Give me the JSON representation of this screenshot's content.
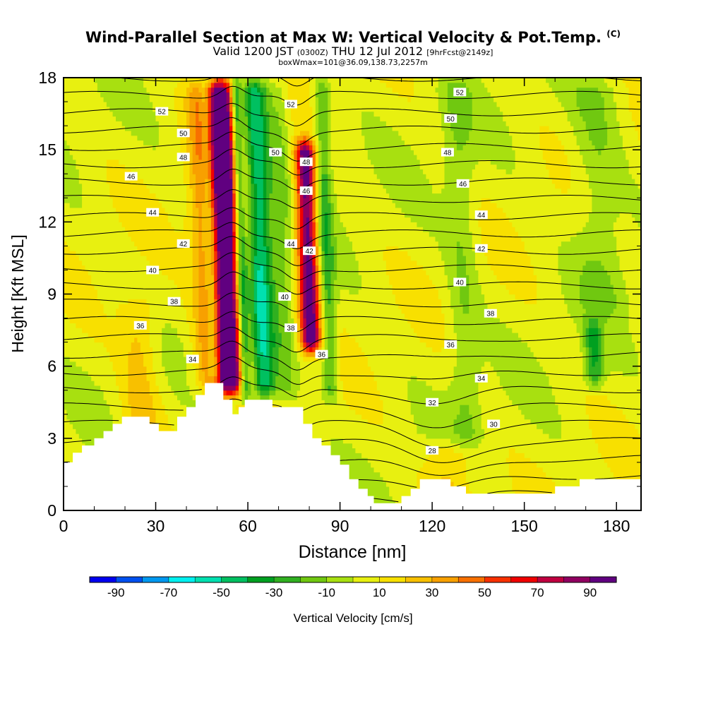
{
  "chart_data": {
    "type": "heatmap",
    "title": "Wind-Parallel Section at Max W: Vertical Velocity & Pot.Temp.",
    "title_mark": "(C)",
    "subtitle": {
      "valid": "Valid 1200 JST",
      "utc": "(0300Z)",
      "date": "THU 12 Jul 2012",
      "forecast": "[9hrFcst@2149z]"
    },
    "subtitle2": "boxWmax=101@36.09,138.73,2257m",
    "xlabel": "Distance [nm]",
    "ylabel": "Height [Kft MSL]",
    "xlim": [
      0,
      188
    ],
    "ylim": [
      0,
      18
    ],
    "x_ticks": [
      "0",
      "30",
      "60",
      "90",
      "120",
      "150",
      "180"
    ],
    "x_tick_values": [
      0,
      30,
      60,
      90,
      120,
      150,
      180
    ],
    "y_ticks": [
      "0",
      "3",
      "6",
      "9",
      "12",
      "15",
      "18"
    ],
    "y_tick_values": [
      0,
      3,
      6,
      9,
      12,
      15,
      18
    ],
    "colorbar": {
      "label": "Vertical Velocity [cm/s]",
      "tick_labels": [
        "-90",
        "-70",
        "-50",
        "-30",
        "-10",
        "10",
        "30",
        "50",
        "70",
        "90"
      ],
      "tick_values": [
        -90,
        -70,
        -50,
        -30,
        -10,
        10,
        30,
        50,
        70,
        90
      ],
      "levels": [
        -100,
        -90,
        -80,
        -70,
        -60,
        -50,
        -40,
        -30,
        -20,
        -10,
        0,
        10,
        20,
        30,
        40,
        50,
        60,
        70,
        80,
        90,
        100
      ],
      "colors": [
        "#0000f0",
        "#0050f0",
        "#0098f0",
        "#00f0f0",
        "#00e0b0",
        "#00c060",
        "#00a020",
        "#30b020",
        "#70c810",
        "#a8e010",
        "#e8f010",
        "#f8e000",
        "#f8c000",
        "#f8a000",
        "#f87000",
        "#f83000",
        "#f00000",
        "#c00040",
        "#900060",
        "#600080"
      ]
    },
    "background_w_cms": 5,
    "w_bands": [
      {
        "x": 52.5,
        "w": 7,
        "amp": 120,
        "z0": 4.8,
        "z1": 18
      },
      {
        "x": 58,
        "w": 2,
        "amp": -75,
        "z0": 4.6,
        "z1": 18
      },
      {
        "x": 64,
        "w": 4.5,
        "amp": -60,
        "z0": 4.6,
        "z1": 18
      },
      {
        "x": 48.5,
        "w": 2.5,
        "amp": -60,
        "z0": 5.0,
        "z1": 18
      },
      {
        "x": 80,
        "w": 3.2,
        "amp": 95,
        "z0": 6.5,
        "z1": 15.5
      },
      {
        "x": 86,
        "w": 2.5,
        "amp": -30,
        "z0": 4.5,
        "z1": 18
      },
      {
        "x": 72,
        "w": 3,
        "amp": -15,
        "z0": 4.5,
        "z1": 18
      },
      {
        "x": 24,
        "w": 6,
        "amp": 20,
        "z0": 3,
        "z1": 9
      },
      {
        "x": 130,
        "w": 5,
        "amp": -15,
        "z0": 2.5,
        "z1": 18
      },
      {
        "x": 172,
        "w": 3,
        "amp": -35,
        "z0": 5,
        "z1": 8
      },
      {
        "x": 175,
        "w": 8,
        "amp": -15,
        "z0": 8,
        "z1": 18
      },
      {
        "x": 124,
        "w": 8,
        "amp": 20,
        "z0": 0,
        "z1": 3
      }
    ],
    "theta": {
      "levels": [
        28,
        29,
        30,
        31,
        32,
        33,
        34,
        35,
        36,
        37,
        38,
        39,
        40,
        41,
        42,
        43,
        44,
        45,
        46,
        47,
        48,
        49,
        50,
        51,
        52,
        53
      ],
      "labels": [
        {
          "text": "52",
          "x": 32,
          "z": 16.6
        },
        {
          "text": "50",
          "x": 39,
          "z": 15.7
        },
        {
          "text": "48",
          "x": 39,
          "z": 14.7
        },
        {
          "text": "46",
          "x": 22,
          "z": 13.9
        },
        {
          "text": "44",
          "x": 29,
          "z": 12.4
        },
        {
          "text": "42",
          "x": 39,
          "z": 11.1
        },
        {
          "text": "40",
          "x": 29,
          "z": 10.0
        },
        {
          "text": "38",
          "x": 36,
          "z": 8.7
        },
        {
          "text": "36",
          "x": 25,
          "z": 7.7
        },
        {
          "text": "34",
          "x": 42,
          "z": 6.3
        },
        {
          "text": "52",
          "x": 74,
          "z": 16.9
        },
        {
          "text": "50",
          "x": 69,
          "z": 14.9
        },
        {
          "text": "48",
          "x": 79,
          "z": 14.5
        },
        {
          "text": "46",
          "x": 79,
          "z": 13.3
        },
        {
          "text": "44",
          "x": 74,
          "z": 11.1
        },
        {
          "text": "42",
          "x": 80,
          "z": 10.8
        },
        {
          "text": "40",
          "x": 72,
          "z": 8.9
        },
        {
          "text": "38",
          "x": 74,
          "z": 7.6
        },
        {
          "text": "36",
          "x": 84,
          "z": 6.5
        },
        {
          "text": "52",
          "x": 129,
          "z": 17.4
        },
        {
          "text": "50",
          "x": 126,
          "z": 16.3
        },
        {
          "text": "48",
          "x": 125,
          "z": 14.9
        },
        {
          "text": "46",
          "x": 130,
          "z": 13.6
        },
        {
          "text": "44",
          "x": 136,
          "z": 12.3
        },
        {
          "text": "42",
          "x": 136,
          "z": 10.9
        },
        {
          "text": "40",
          "x": 129,
          "z": 9.5
        },
        {
          "text": "38",
          "x": 139,
          "z": 8.2
        },
        {
          "text": "36",
          "x": 126,
          "z": 6.9
        },
        {
          "text": "34",
          "x": 136,
          "z": 5.5
        },
        {
          "text": "32",
          "x": 120,
          "z": 4.5
        },
        {
          "text": "30",
          "x": 140,
          "z": 3.6
        },
        {
          "text": "28",
          "x": 120,
          "z": 2.5
        }
      ]
    },
    "terrain": [
      [
        0,
        2.0
      ],
      [
        3,
        2.0
      ],
      [
        3,
        2.4
      ],
      [
        6,
        2.4
      ],
      [
        6,
        2.7
      ],
      [
        10,
        2.7
      ],
      [
        10,
        3.0
      ],
      [
        13,
        3.0
      ],
      [
        13,
        3.3
      ],
      [
        16,
        3.3
      ],
      [
        16,
        3.6
      ],
      [
        19,
        3.6
      ],
      [
        19,
        3.9
      ],
      [
        28,
        3.9
      ],
      [
        28,
        3.6
      ],
      [
        31,
        3.6
      ],
      [
        31,
        3.3
      ],
      [
        37,
        3.3
      ],
      [
        37,
        3.9
      ],
      [
        40,
        3.9
      ],
      [
        40,
        4.3
      ],
      [
        43,
        4.3
      ],
      [
        43,
        4.8
      ],
      [
        46,
        4.8
      ],
      [
        46,
        5.3
      ],
      [
        52,
        5.3
      ],
      [
        52,
        4.6
      ],
      [
        55,
        4.6
      ],
      [
        55,
        4.0
      ],
      [
        57,
        4.0
      ],
      [
        57,
        4.3
      ],
      [
        59,
        4.3
      ],
      [
        59,
        4.6
      ],
      [
        68,
        4.6
      ],
      [
        68,
        4.3
      ],
      [
        78,
        4.3
      ],
      [
        78,
        3.6
      ],
      [
        81,
        3.6
      ],
      [
        81,
        3.0
      ],
      [
        84,
        3.0
      ],
      [
        84,
        2.7
      ],
      [
        87,
        2.7
      ],
      [
        87,
        2.3
      ],
      [
        90,
        2.3
      ],
      [
        90,
        1.9
      ],
      [
        93,
        1.9
      ],
      [
        93,
        1.3
      ],
      [
        96,
        1.3
      ],
      [
        96,
        0.9
      ],
      [
        99,
        0.9
      ],
      [
        99,
        0.6
      ],
      [
        101,
        0.6
      ],
      [
        101,
        0.3
      ],
      [
        110,
        0.3
      ],
      [
        110,
        0.6
      ],
      [
        113,
        0.6
      ],
      [
        113,
        0.9
      ],
      [
        116,
        0.9
      ],
      [
        116,
        1.3
      ],
      [
        126,
        1.3
      ],
      [
        126,
        1.0
      ],
      [
        131,
        1.0
      ],
      [
        131,
        0.7
      ],
      [
        160,
        0.7
      ],
      [
        160,
        1.0
      ],
      [
        168,
        1.0
      ],
      [
        168,
        1.3
      ],
      [
        188,
        1.3
      ]
    ]
  }
}
